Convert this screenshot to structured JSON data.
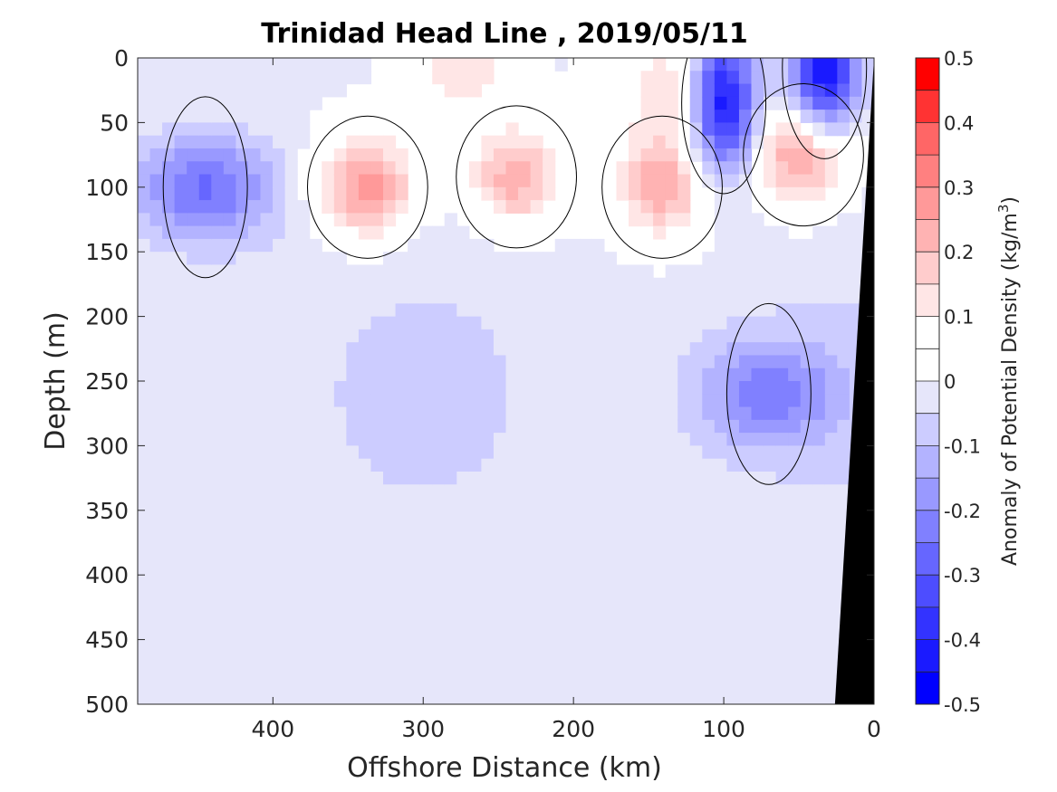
{
  "chart_data": {
    "type": "contour",
    "title": "Trinidad Head Line , 2019/05/11",
    "xlabel": "Offshore Distance (km)",
    "ylabel": "Depth (m)",
    "xlim": [
      490,
      0
    ],
    "ylim": [
      0,
      500
    ],
    "x_reversed": true,
    "y_reversed": true,
    "x_ticks": [
      "400",
      "300",
      "200",
      "100",
      "0"
    ],
    "x_tick_values": [
      400,
      300,
      200,
      100,
      0
    ],
    "y_ticks": [
      "0",
      "50",
      "100",
      "150",
      "200",
      "250",
      "300",
      "350",
      "400",
      "450",
      "500"
    ],
    "y_tick_values": [
      0,
      50,
      100,
      150,
      200,
      250,
      300,
      350,
      400,
      450,
      500
    ],
    "grid": false,
    "colorbar": {
      "label_prefix": "Anomaly of Potential Density (kg/m",
      "label_sup": "3",
      "label_suffix": ")",
      "range": [
        -0.5,
        0.5
      ],
      "tick_labels": [
        "0.5",
        "0.4",
        "0.3",
        "0.2",
        "0.1",
        "0",
        "-0.1",
        "-0.2",
        "-0.3",
        "-0.4",
        "-0.5"
      ],
      "tick_values": [
        0.5,
        0.4,
        0.3,
        0.2,
        0.1,
        0,
        -0.1,
        -0.2,
        -0.3,
        -0.4,
        -0.5
      ],
      "levels": [
        -0.5,
        -0.45,
        -0.4,
        -0.35,
        -0.3,
        -0.25,
        -0.2,
        -0.15,
        -0.1,
        -0.05,
        0.05,
        0.1,
        0.15,
        0.2,
        0.25,
        0.3,
        0.35,
        0.4,
        0.45,
        0.5
      ],
      "colors_low_to_high": [
        "#0000ff",
        "#1a1aff",
        "#3333ff",
        "#4d4dff",
        "#6666ff",
        "#8080ff",
        "#9999ff",
        "#b3b3ff",
        "#ccccff",
        "#e6e6fa",
        "#ffffff",
        "#ffffff",
        "#ffe6e6",
        "#ffcccc",
        "#ffb3b3",
        "#ff9999",
        "#ff8080",
        "#ff6666",
        "#ff4d4d",
        "#ff3333",
        "#ff1a1a",
        "#ff0000"
      ]
    },
    "features": [
      {
        "sign": "positive",
        "peak": 0.3,
        "x_km": 337,
        "depth_m": 100
      },
      {
        "sign": "positive",
        "peak": 0.25,
        "x_km": 238,
        "depth_m": 92
      },
      {
        "sign": "positive",
        "peak": 0.25,
        "x_km": 141,
        "depth_m": 100
      },
      {
        "sign": "positive",
        "peak": 0.3,
        "x_km": 47,
        "depth_m": 75
      },
      {
        "sign": "positive",
        "peak": 0.15,
        "x_km": 275,
        "depth_m": 5
      },
      {
        "sign": "positive",
        "peak": 0.15,
        "x_km": 138,
        "depth_m": 25
      },
      {
        "sign": "negative",
        "peak": -0.25,
        "x_km": 445,
        "depth_m": 100
      },
      {
        "sign": "negative",
        "peak": -0.45,
        "x_km": 100,
        "depth_m": 35
      },
      {
        "sign": "negative",
        "peak": -0.45,
        "x_km": 33,
        "depth_m": 8
      },
      {
        "sign": "negative",
        "peak": -0.2,
        "x_km": 70,
        "depth_m": 260
      }
    ],
    "bathymetry": {
      "color": "#000000",
      "surface_x_km": 0,
      "bottom_x_km": 26
    }
  }
}
